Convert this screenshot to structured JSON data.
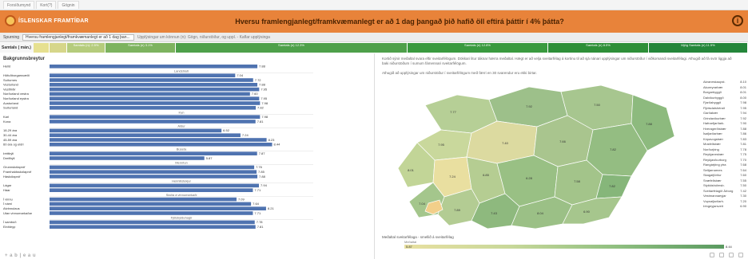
{
  "tabs": [
    "Forsíðumynd",
    "Kort(?)",
    "Gögnin"
  ],
  "header": {
    "brand": "ÍSLENSKAR FRAMTÍÐAR",
    "title": "Hversu framlengjanlegt/framkvæmanlegt er að 1 dag þangað þið hafið öll eftirá þáttir í 4% þátta?",
    "info_icon": "info-icon"
  },
  "filter": {
    "label": "Spurning",
    "value": "Hversu framlengjanlegt/framkvæmanlegt er að 1 dag þan...",
    "note": "Upplýsingar um könnun (n): Gögn, niðurstöður, og uppl. - Kaflar upplýsinga"
  },
  "legend": {
    "label": "Samtals ( mán.)",
    "segments": [
      {
        "text": "",
        "color": "#e6e090",
        "width": 20
      },
      {
        "text": "",
        "color": "#d6d68a",
        "width": 22
      },
      {
        "text": "Samtals (n): 2.5%",
        "color": "#b5cc7c",
        "width": 48
      },
      {
        "text": "Samtals (n) 3.1%",
        "color": "#7db35f",
        "width": 88
      },
      {
        "text": "Samtals (n) 12.3%",
        "color": "#4ea04a",
        "width": 290
      },
      {
        "text": "Samtals (n) 12.8%",
        "color": "#3a9a3f",
        "width": 176
      },
      {
        "text": "Samtals (n) 8.5%",
        "color": "#2e8f38",
        "width": 126
      },
      {
        "text": "Mjög Samtals (n) 11.5%",
        "color": "#24863a",
        "width": 124
      }
    ]
  },
  "left_panel": {
    "title": "Bakgrunnsbreytur"
  },
  "chart_data": {
    "type": "bar",
    "orientation": "horizontal",
    "value_format": "decimal",
    "groups": [
      {
        "header": "",
        "rows": [
          {
            "label": "Heild",
            "value": 7.88
          }
        ]
      },
      {
        "header": "Landshluti",
        "rows": [
          {
            "label": "Höfuðborgarsvæði",
            "value": 7.04
          },
          {
            "label": "Suðurnes",
            "value": 7.72
          },
          {
            "label": "Vesturland",
            "value": 7.88
          },
          {
            "label": "Vestfirðir",
            "value": 7.95
          },
          {
            "label": "Norðurland vestra",
            "value": 7.6
          },
          {
            "label": "Norðurland eystra",
            "value": 7.95
          },
          {
            "label": "Austurland",
            "value": 7.98
          },
          {
            "label": "Suðurland",
            "value": 7.82
          }
        ]
      },
      {
        "header": "Kyn",
        "rows": [
          {
            "label": "Karl",
            "value": 7.98
          },
          {
            "label": "Kona",
            "value": 7.81
          }
        ]
      },
      {
        "header": "Aldur",
        "rows": [
          {
            "label": "18-29 ára",
            "value": 6.52
          },
          {
            "label": "30-44 ára",
            "value": 7.24
          },
          {
            "label": "45-59 ára",
            "value": 8.23
          },
          {
            "label": "60 ára og eldri",
            "value": 8.44
          }
        ]
      },
      {
        "header": "Búseta",
        "rows": [
          {
            "label": "Þéttbýli",
            "value": 7.87
          },
          {
            "label": "Dreifbýli",
            "value": 5.87
          }
        ]
      },
      {
        "header": "Menntun",
        "rows": [
          {
            "label": "Grunnskólapróf",
            "value": 7.76
          },
          {
            "label": "Framhaldsskólapróf",
            "value": 7.85
          },
          {
            "label": "Háskólapróf",
            "value": 7.88
          }
        ]
      },
      {
        "header": "Heimilistekjur",
        "rows": [
          {
            "label": "Lágar",
            "value": 7.94
          },
          {
            "label": "Háar",
            "value": 7.71
          }
        ]
      },
      {
        "header": "Staða á vinnumarkaði",
        "rows": [
          {
            "label": "Í vinnu",
            "value": 7.09
          },
          {
            "label": "Í námi",
            "value": 7.64
          },
          {
            "label": "Atvinnulaus",
            "value": 8.21
          },
          {
            "label": "Utan vinnumarkaðar",
            "value": 7.71
          }
        ]
      },
      {
        "header": "Fjölskylduhagir",
        "rows": [
          {
            "label": "Í sambúð",
            "value": 7.78
          },
          {
            "label": "Einhleyp",
            "value": 7.81
          }
        ]
      }
    ],
    "xlim": [
      0,
      10
    ],
    "bar_color": "#4f73b0"
  },
  "right_panel": {
    "description": "Kortið sýnir meðaltal svara eftir sveitarfélögum. Dökkari litur táknar hærra meðaltal. Hægt er að velja sveitarfélag á kortinu til að sjá nánari upplýsingar um niðurstöður í viðkomandi sveitarfélagi. Athugið að fá svör liggja að baki niðurstöðum í sumum fámennari sveitarfélögum.",
    "description2": "Athugið að upplýsingar um niðurstöður í sveitarfélögum með færri en 30 svarendur eru ekki birtar.",
    "map_labels": [
      "7.77",
      "7.92",
      "7.50",
      "7.88",
      "7.95",
      "7.40",
      "7.66",
      "7.82",
      "8.01",
      "7.24",
      "6.85",
      "6.28",
      "7.58",
      "7.82",
      "7.04",
      "7.89",
      "7.43",
      "8.04",
      "6.90"
    ],
    "municipalities": [
      {
        "name": "Akraneskaupst.",
        "value": "8.10"
      },
      {
        "name": "Akureyrarbær",
        "value": "8.01"
      },
      {
        "name": "Borgarbyggð",
        "value": "8.01"
      },
      {
        "name": "Dalvíkurbyggð",
        "value": "8.00"
      },
      {
        "name": "Fjarðabyggð",
        "value": "7.98"
      },
      {
        "name": "Fljótsdalshérað",
        "value": "7.95"
      },
      {
        "name": "Garðabær",
        "value": "7.94"
      },
      {
        "name": "Grindavíkurbær",
        "value": "7.92"
      },
      {
        "name": "Hafnarfjarðark.",
        "value": "7.90"
      },
      {
        "name": "Hveragerðisbær",
        "value": "7.88"
      },
      {
        "name": "Ísafjarðarbær",
        "value": "7.86"
      },
      {
        "name": "Kópavogsbær",
        "value": "7.83"
      },
      {
        "name": "Mosfellsbær",
        "value": "7.81"
      },
      {
        "name": "Norðurþing",
        "value": "7.78"
      },
      {
        "name": "Reykjanesbær",
        "value": "7.75"
      },
      {
        "name": "Reykjavíkurborg",
        "value": "7.70"
      },
      {
        "name": "Rangárþing ytra",
        "value": "7.68"
      },
      {
        "name": "Seltjarnarnes",
        "value": "7.64"
      },
      {
        "name": "Skagafjörður",
        "value": "7.60"
      },
      {
        "name": "Snæfellsbær",
        "value": "7.55"
      },
      {
        "name": "Stykkishólmsb.",
        "value": "7.50"
      },
      {
        "name": "Sveitarfélagið Árborg",
        "value": "7.42"
      },
      {
        "name": "Vestmannaeyjar",
        "value": "7.30"
      },
      {
        "name": "Vopnafjarðarh.",
        "value": "7.20"
      },
      {
        "name": "Þingeyjarsveit",
        "value": "6.90"
      }
    ],
    "legend_title": "Meðaltal sveitarfélaga - smellið á sveitarfélag",
    "legend_sub": "Meðaltal",
    "legend_min": "5.87",
    "legend_max": "8.44"
  },
  "footer": {
    "logo": "+ a b | e a u"
  },
  "colors": {
    "accent": "#e8833a",
    "bar": "#4f73b0",
    "map_light": "#e8e0a0",
    "map_dark": "#5a9a60"
  }
}
